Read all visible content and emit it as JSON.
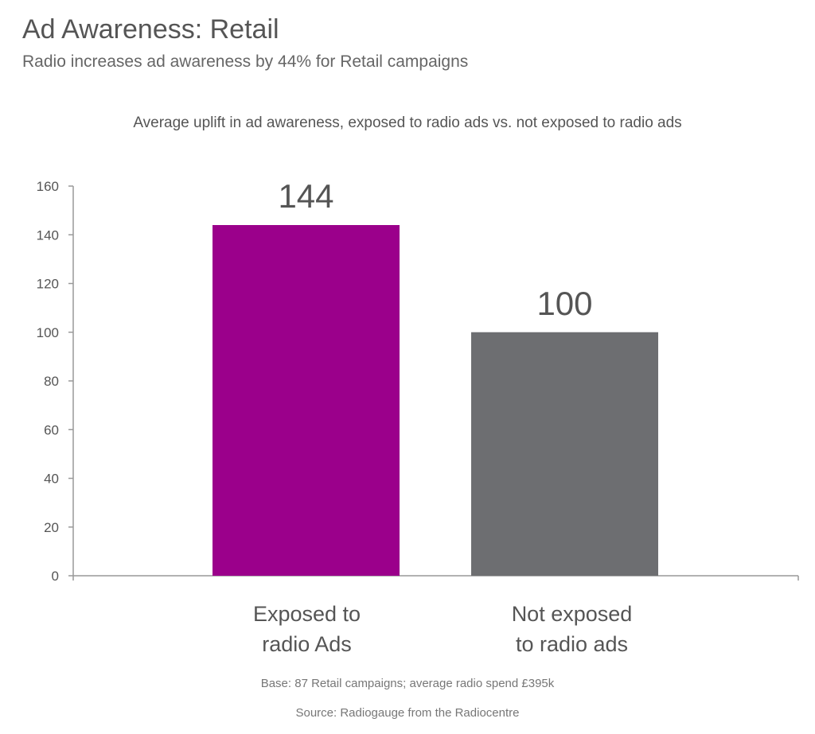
{
  "title": "Ad Awareness: Retail",
  "subtitle": "Radio increases ad awareness by 44% for Retail campaigns",
  "chart_data": {
    "type": "bar",
    "title": "Average uplift in ad awareness, exposed to radio ads vs. not exposed to radio ads",
    "categories": [
      "Exposed to radio Ads",
      "Not exposed to radio ads"
    ],
    "category_lines": [
      [
        "Exposed to",
        "radio Ads"
      ],
      [
        "Not exposed",
        "to radio ads"
      ]
    ],
    "values": [
      144,
      100
    ],
    "data_labels": [
      "144",
      "100"
    ],
    "colors": [
      "#9b008b",
      "#6d6e71"
    ],
    "ylim": [
      0,
      160
    ],
    "yticks": [
      0,
      20,
      40,
      60,
      80,
      100,
      120,
      140,
      160
    ],
    "grid": false,
    "xlabel": "",
    "ylabel": ""
  },
  "footnotes": {
    "base": "Base: 87 Retail campaigns; average radio spend £395k",
    "source": "Source: Radiogauge from the Radiocentre"
  }
}
